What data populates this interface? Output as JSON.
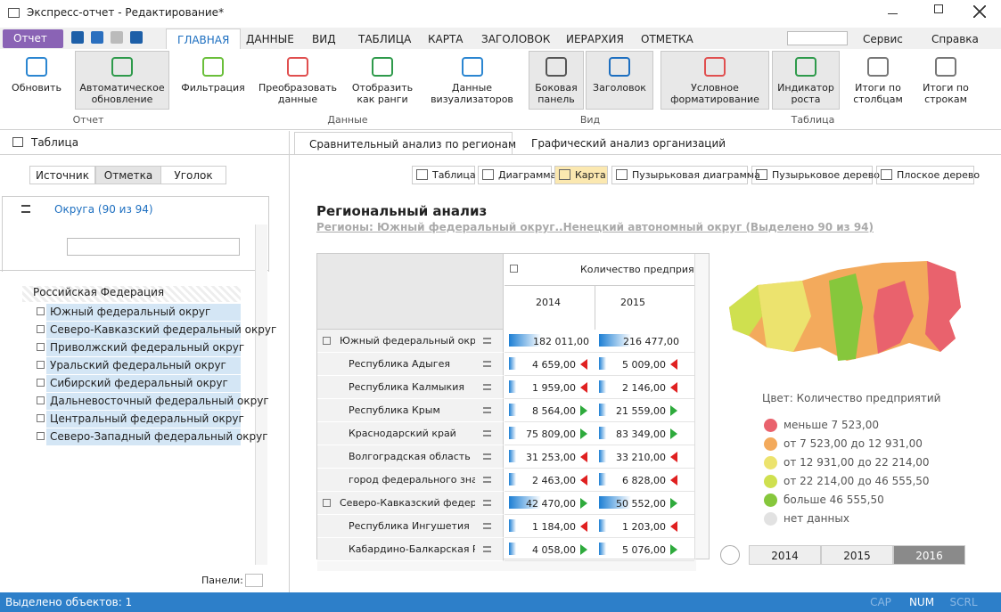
{
  "window": {
    "title": "Экспресс-отчет - Редактирование*"
  },
  "menu": {
    "file": "Отчет",
    "tabs": [
      "ГЛАВНАЯ",
      "ДАННЫЕ",
      "ВИД",
      "ТАБЛИЦА",
      "КАРТА",
      "ЗАГОЛОВОК",
      "ИЕРАРХИЯ",
      "ОТМЕТКА"
    ],
    "right": [
      "Сервис",
      "Справка"
    ]
  },
  "ribbon": {
    "buttons": [
      {
        "label": [
          "Обновить"
        ]
      },
      {
        "label": [
          "Автоматическое",
          "обновление"
        ]
      },
      {
        "label": [
          "Фильтрация"
        ]
      },
      {
        "label": [
          "Преобразовать",
          "данные"
        ]
      },
      {
        "label": [
          "Отобразить",
          "как ранги"
        ]
      },
      {
        "label": [
          "Данные",
          "визуализаторов"
        ]
      },
      {
        "label": [
          "Боковая",
          "панель"
        ]
      },
      {
        "label": [
          "Заголовок"
        ]
      },
      {
        "label": [
          "Условное",
          "форматирование"
        ]
      },
      {
        "label": [
          "Индикатор",
          "роста"
        ]
      },
      {
        "label": [
          "Итоги по",
          "столбцам"
        ]
      },
      {
        "label": [
          "Итоги по",
          "строкам"
        ]
      }
    ],
    "groups": [
      "Отчет",
      "Данные",
      "Вид",
      "Таблица"
    ]
  },
  "left_panel": {
    "title": "Таблица",
    "tabs": [
      "Источник",
      "Отметка",
      "Уголок"
    ],
    "dimension": "Округа (90 из 94)",
    "tree": {
      "root": "Российская Федерация",
      "items": [
        "Южный федеральный округ",
        "Северо-Кавказский федеральный округ",
        "Приволжский федеральный округ",
        "Уральский федеральный округ",
        "Сибирский федеральный округ",
        "Дальневосточный федеральный округ",
        "Центральный федеральный округ",
        "Северо-Западный федеральный округ"
      ]
    },
    "footer": "Панели:"
  },
  "doc_tabs": [
    "Сравнительный анализ по регионам",
    "Графический анализ организаций"
  ],
  "views": [
    "Таблица",
    "Диаграмма",
    "Карта",
    "Пузырьковая диаграмма",
    "Пузырьковое дерево",
    "Плоское дерево"
  ],
  "report": {
    "title": "Региональный анализ",
    "subtitle": "Регионы: Южный федеральный округ..Ненецкий автономный округ (Выделено 90 из 94)"
  },
  "table": {
    "header": "Количество предприятий",
    "years": [
      "2014",
      "2015"
    ],
    "rows": [
      {
        "name": "Южный федеральный округ",
        "group": true,
        "values": [
          "182 011,00",
          "216 477,00"
        ],
        "trend": [
          null,
          null
        ]
      },
      {
        "name": "Республика Адыгея",
        "group": false,
        "values": [
          "4 659,00",
          "5 009,00"
        ],
        "trend": [
          "down",
          "down"
        ]
      },
      {
        "name": "Республика Калмыкия",
        "group": false,
        "values": [
          "1 959,00",
          "2 146,00"
        ],
        "trend": [
          "down",
          "down"
        ]
      },
      {
        "name": "Республика Крым",
        "group": false,
        "values": [
          "8 564,00",
          "21 559,00"
        ],
        "trend": [
          "up",
          "up"
        ]
      },
      {
        "name": "Краснодарский край",
        "group": false,
        "values": [
          "75 809,00",
          "83 349,00"
        ],
        "trend": [
          "up",
          "up"
        ]
      },
      {
        "name": "Волгоградская область",
        "group": false,
        "values": [
          "31 253,00",
          "33 210,00"
        ],
        "trend": [
          "down",
          "down"
        ]
      },
      {
        "name": "город федерального знач...",
        "group": false,
        "values": [
          "2 463,00",
          "6 828,00"
        ],
        "trend": [
          "down",
          "down"
        ]
      },
      {
        "name": "Северо-Кавказский федера...",
        "group": true,
        "values": [
          "42 470,00",
          "50 552,00"
        ],
        "trend": [
          "up",
          "up"
        ]
      },
      {
        "name": "Республика Ингушетия",
        "group": false,
        "values": [
          "1 184,00",
          "1 203,00"
        ],
        "trend": [
          "down",
          "down"
        ]
      },
      {
        "name": "Кабардино-Балкарская Р...",
        "group": false,
        "values": [
          "4 058,00",
          "5 076,00"
        ],
        "trend": [
          "up",
          "up"
        ]
      }
    ]
  },
  "map": {
    "legend_title": "Цвет: Количество предприятий",
    "legend": [
      {
        "label": "меньше 7 523,00",
        "color": "#e9626d"
      },
      {
        "label": "от 7 523,00 до 12 931,00",
        "color": "#f3aa5c"
      },
      {
        "label": "от 12 931,00 до 22 214,00",
        "color": "#ece36e"
      },
      {
        "label": "от 22 214,00 до 46 555,50",
        "color": "#cfe04f"
      },
      {
        "label": "больше 46 555,50",
        "color": "#86c73c"
      },
      {
        "label": "нет данных",
        "color": "#e2e2e2"
      }
    ],
    "timeline": [
      "2014",
      "2015",
      "2016"
    ],
    "selected": "2016"
  },
  "status": {
    "text": "Выделено объектов: 1",
    "indicators": [
      "CAP",
      "NUM",
      "SCRL"
    ]
  }
}
